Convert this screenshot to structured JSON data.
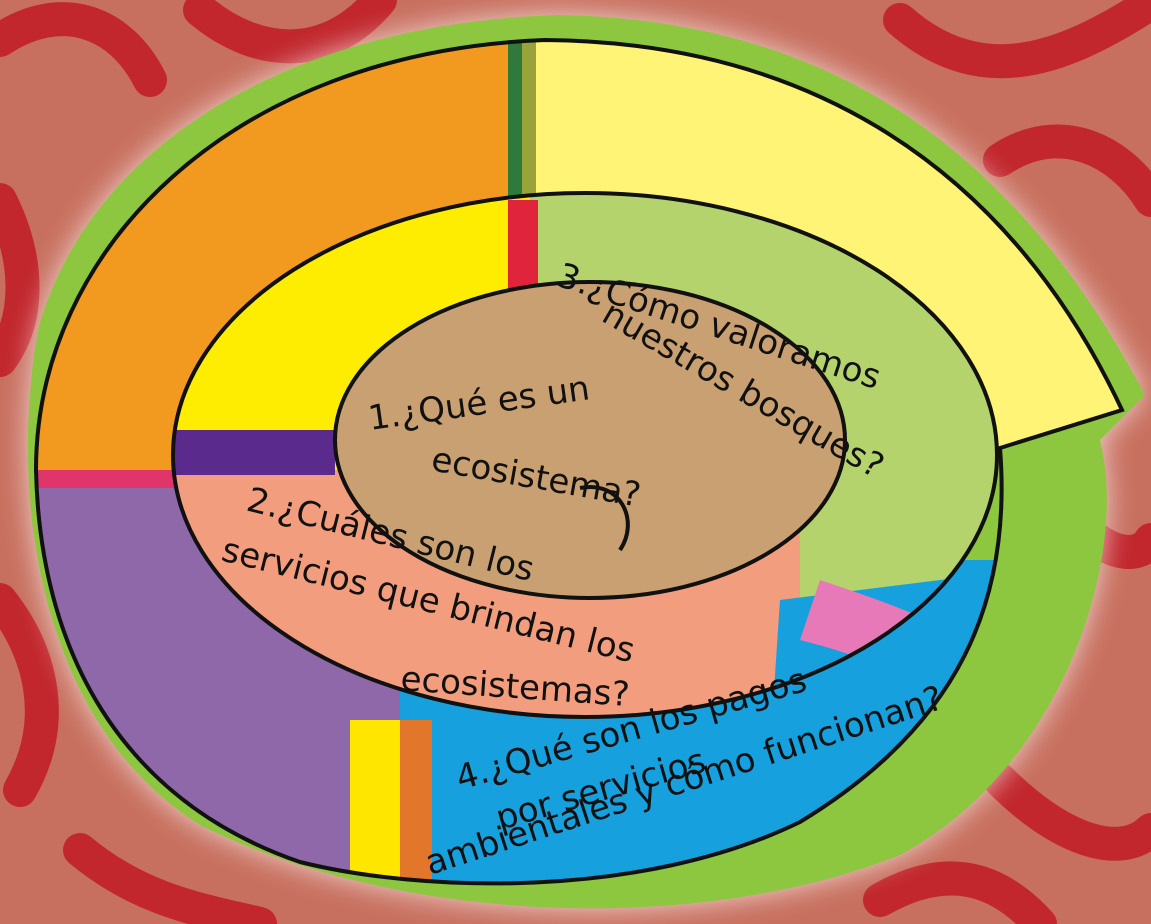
{
  "questions": [
    {
      "lines": [
        "1.¿Qué es un",
        "ecosistema?"
      ]
    },
    {
      "lines": [
        "2.¿Cuáles son los",
        "servicios que brindan los",
        "ecosistemas?"
      ]
    },
    {
      "lines": [
        "3.¿Cómo valoramos",
        "nuestros bosques?"
      ]
    },
    {
      "lines": [
        "4.¿Qué son los pagos",
        "por servicios",
        "ambientales y cómo funcionan?"
      ]
    }
  ]
}
